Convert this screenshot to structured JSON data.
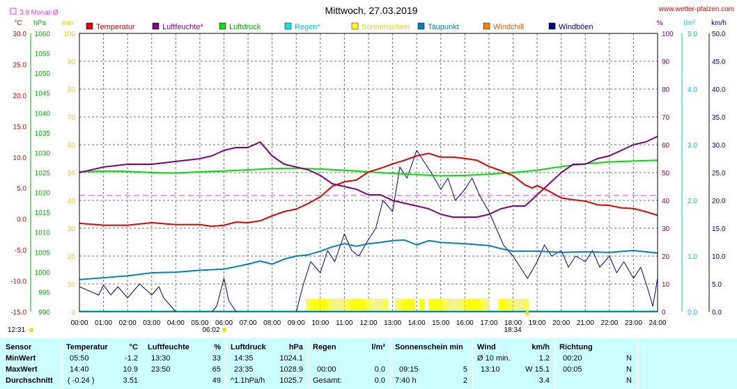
{
  "header": {
    "title": "Mittwoch, 27.03.2019",
    "site": "www.wetter-pfalzen.com",
    "monthly_avg_label": "3.8 Monat-Ø",
    "unit_left": [
      "°C",
      "hPa",
      "min"
    ],
    "unit_right": [
      "%",
      "l/m²",
      "km/h"
    ]
  },
  "colors": {
    "temperature": "#e00000",
    "humidity": "#800080",
    "pressure": "#00e000",
    "rain": "#00e8e8",
    "sunshine": "#ffff00",
    "dewpoint": "#0080c0",
    "windchill": "#ff8000",
    "gust": "#000080",
    "monthly_avg": "#e040e0"
  },
  "chart_data": {
    "type": "line",
    "title": "Mittwoch, 27.03.2019",
    "x_tick_labels": [
      "00:00",
      "01:00",
      "02:00",
      "03:00",
      "04:00",
      "05:00",
      "06:00",
      "07:00",
      "08:00",
      "09:00",
      "10:00",
      "11:00",
      "12:00",
      "13:00",
      "14:00",
      "15:00",
      "16:00",
      "17:00",
      "18:00",
      "19:00",
      "20:00",
      "21:00",
      "22:00",
      "23:00",
      "24:00"
    ],
    "x_range_hours": [
      0,
      24
    ],
    "axes": {
      "temperature_c": {
        "range": [
          -15,
          30
        ],
        "ticks": [
          "30.0",
          "25.0",
          "20.0",
          "15.0",
          "10.0",
          "5.0",
          "0.0",
          "-5.0",
          "-10.0",
          "-15.0"
        ]
      },
      "pressure_hpa": {
        "range": [
          990,
          1060
        ],
        "ticks": [
          "1060",
          "1055",
          "1050",
          "1045",
          "1040",
          "1035",
          "1030",
          "1025",
          "1020",
          "1015",
          "1010",
          "1005",
          "1000",
          "995",
          "990"
        ]
      },
      "sunshine_min": {
        "range": [
          0,
          100
        ],
        "ticks": [
          "100",
          "90",
          "80",
          "70",
          "60",
          "50",
          "40",
          "30",
          "20",
          "10",
          "0"
        ]
      },
      "humidity_pct": {
        "range": [
          0,
          100
        ],
        "ticks": [
          "100",
          "90",
          "80",
          "70",
          "60",
          "50",
          "40",
          "30",
          "20",
          "10",
          "0"
        ]
      },
      "rain_lm2": {
        "range": [
          0,
          5
        ],
        "ticks": [
          "5.0",
          "4.0",
          "3.0",
          "2.0",
          "1.0",
          "0.0"
        ]
      },
      "wind_kmh": {
        "range": [
          0,
          50
        ],
        "ticks": [
          "50.0",
          "45.0",
          "40.0",
          "35.0",
          "30.0",
          "25.0",
          "20.0",
          "15.0",
          "10.0",
          "5.0",
          "0.0"
        ]
      }
    },
    "legend": [
      "Temperatur",
      "Luftfeuchte*",
      "Luftdruck",
      "Regen*",
      "Sonnenschein",
      "Taupunkt",
      "Windchill",
      "Windböen"
    ],
    "monthly_avg_c": 3.8,
    "sunrise": "06:02",
    "sunset": "18:34",
    "bottom_left_time": "12:31",
    "series": [
      {
        "name": "Temperatur",
        "axis": "temperature_c",
        "x": [
          0,
          1,
          2,
          3,
          4,
          5,
          5.5,
          6,
          6.5,
          7,
          7.5,
          8,
          8.5,
          9,
          9.5,
          10,
          10.5,
          11,
          11.5,
          12,
          12.5,
          13,
          13.5,
          14,
          14.5,
          15,
          15.5,
          16,
          16.5,
          17,
          17.5,
          18,
          18.5,
          18.8,
          19,
          19.5,
          20,
          20.5,
          21,
          21.5,
          22,
          22.5,
          23,
          23.5,
          24
        ],
        "y": [
          -0.7,
          -1,
          -1,
          -0.6,
          -0.9,
          -0.9,
          -1.2,
          -1,
          -0.5,
          -0.6,
          -0.3,
          0.5,
          1.2,
          1.6,
          2.5,
          3.6,
          5.3,
          6,
          6.3,
          7.6,
          8.2,
          8.9,
          9.5,
          10.2,
          10.6,
          10,
          10,
          9.8,
          9.5,
          8.5,
          7.8,
          7,
          5.5,
          5,
          5.4,
          4.5,
          3.4,
          3.1,
          2.9,
          2.3,
          2.2,
          1.8,
          1.7,
          1.2,
          0.6
        ]
      },
      {
        "name": "Luftfeuchte*",
        "axis": "humidity_pct",
        "x": [
          0,
          1,
          2,
          3,
          4,
          5,
          5.5,
          6,
          6.5,
          7,
          7.5,
          8,
          8.5,
          9,
          9.5,
          10,
          10.5,
          11,
          11.5,
          12,
          12.5,
          13,
          13.5,
          14,
          14.5,
          15,
          15.5,
          16,
          16.5,
          17,
          17.5,
          18,
          18.5,
          19,
          19.5,
          20,
          20.5,
          21,
          21.5,
          22,
          22.5,
          23,
          23.5,
          24
        ],
        "y": [
          50,
          52,
          53,
          53,
          54,
          55,
          56,
          58,
          59,
          59,
          61,
          56,
          53,
          52,
          51,
          49,
          46,
          45,
          44,
          42,
          42,
          40,
          39,
          38,
          37,
          35,
          34,
          34,
          34,
          35,
          37,
          38,
          38,
          42,
          46,
          50,
          53,
          53,
          55,
          56,
          58,
          60,
          61,
          63
        ]
      },
      {
        "name": "Luftdruck",
        "axis": "pressure_hpa",
        "x": [
          0,
          1,
          2,
          3,
          4,
          5,
          6,
          7,
          8,
          9,
          10,
          11,
          12,
          13,
          14,
          15,
          16,
          17,
          18,
          19,
          20,
          21,
          22,
          23,
          24
        ],
        "y": [
          1025.2,
          1025.4,
          1025.3,
          1025.0,
          1024.9,
          1025.2,
          1025.4,
          1025.7,
          1026.0,
          1026.1,
          1025.9,
          1025.6,
          1025.2,
          1024.8,
          1024.5,
          1024.2,
          1024.3,
          1024.6,
          1025.0,
          1025.6,
          1026.5,
          1027.2,
          1027.7,
          1027.9,
          1028.1
        ]
      },
      {
        "name": "Taupunkt",
        "axis": "temperature_c",
        "x": [
          0,
          1,
          2,
          3,
          4,
          5,
          6,
          7,
          7.5,
          8,
          8.5,
          9,
          9.5,
          10,
          10.5,
          11,
          11.5,
          12,
          12.5,
          13,
          13.5,
          14,
          14.5,
          15,
          16,
          17,
          17.5,
          18,
          19,
          20,
          21,
          22,
          23,
          24
        ],
        "y": [
          -9.8,
          -9.5,
          -9.2,
          -8.7,
          -8.6,
          -8.3,
          -8.1,
          -7.3,
          -6.8,
          -7.3,
          -6.5,
          -6,
          -5.8,
          -5.2,
          -4.5,
          -4,
          -4.4,
          -4,
          -3.8,
          -3.5,
          -3.4,
          -4.2,
          -3.5,
          -3.8,
          -4,
          -4.3,
          -4.8,
          -5.2,
          -5.2,
          -5.4,
          -5.3,
          -5.4,
          -5.1,
          -5.5
        ]
      },
      {
        "name": "Windböen",
        "axis": "wind_kmh",
        "x": [
          0,
          0.8,
          1,
          1.3,
          1.6,
          2,
          2.5,
          3,
          3.3,
          3.5,
          4,
          4.5,
          5,
          5.2,
          5.5,
          5.7,
          6,
          6.2,
          6.5,
          7,
          8,
          9,
          9.3,
          9.6,
          10,
          10.3,
          10.6,
          11,
          11.3,
          11.6,
          12,
          12.3,
          12.6,
          13,
          13.3,
          13.6,
          14,
          14.3,
          14.6,
          15,
          15.3,
          15.6,
          16,
          16.3,
          16.6,
          17,
          17.3,
          17.6,
          18,
          18.3,
          18.6,
          19,
          19.3,
          19.6,
          20,
          20.3,
          20.6,
          21,
          21.3,
          21.6,
          22,
          22.3,
          22.6,
          23,
          23.3,
          23.6,
          23.8,
          24
        ],
        "y": [
          4.5,
          3,
          4.8,
          3,
          4.5,
          2.5,
          5,
          3,
          4.5,
          2.5,
          0,
          0,
          0,
          0,
          0,
          1,
          6,
          2,
          0,
          0,
          0,
          0,
          5,
          9,
          7,
          11,
          9,
          14,
          11,
          10,
          13,
          15,
          20,
          18,
          26,
          24,
          29,
          27,
          25,
          22,
          24,
          20,
          22,
          24,
          21,
          18,
          15,
          12,
          10,
          8,
          6,
          9,
          12,
          10,
          11,
          8,
          10,
          9,
          11,
          8,
          10,
          7,
          9,
          6,
          8,
          4,
          1,
          6
        ]
      }
    ],
    "sunshine_intervals_hours": [
      [
        9.4,
        12.8
      ],
      [
        13.1,
        13.9
      ],
      [
        14.1,
        14.3
      ],
      [
        14.5,
        17.0
      ],
      [
        17.4,
        18.6
      ]
    ]
  },
  "stats": {
    "headers": {
      "sensor": "Sensor",
      "temperatur": "Temperatur",
      "temperatur_unit": "°C",
      "luftfeuchte": "Luftfeuchte",
      "luftfeuchte_unit": "%",
      "luftdruck": "Luftdruck",
      "luftdruck_unit": "hPa",
      "regen": "Regen",
      "regen_unit": "l/m²",
      "sonnenschein": "Sonnenschein min",
      "wind": "Wind",
      "wind_unit": "km/h",
      "richtung": "Richtung"
    },
    "rows": [
      {
        "label": "MinWert",
        "t_time": "05:50",
        "t_val": "-1.2",
        "h_time": "13:30",
        "h_val": "33",
        "p_time": "14:35",
        "p_val": "1024.1",
        "r_time": "",
        "r_val": "",
        "s_time": "",
        "s_val": "",
        "w_desc": "Ø 10 min.",
        "w_val": "1.2",
        "d_time": "00:20",
        "d_val": "N"
      },
      {
        "label": "MaxWert",
        "t_time": "14:40",
        "t_val": "10.9",
        "h_time": "23:50",
        "h_val": "65",
        "p_time": "23:35",
        "p_val": "1028.9",
        "r_time": "00:00",
        "r_val": "0.0",
        "s_time": "09:15",
        "s_val": "5",
        "w_desc": "13:10",
        "w_val": "W 15.1",
        "d_time": "00:05",
        "d_val": "N"
      },
      {
        "label": "Durchschnitt",
        "t_time": "( -0.24 )",
        "t_val": "3.51",
        "h_time": "",
        "h_val": "49",
        "p_time": "^1.1hPa/h",
        "p_val": "1025.7",
        "r_time": "Gesamt:",
        "r_val": "0.0",
        "s_time": "7:40 h",
        "s_val": "2",
        "w_desc": "",
        "w_val": "3.4",
        "d_time": "",
        "d_val": "N"
      }
    ]
  }
}
